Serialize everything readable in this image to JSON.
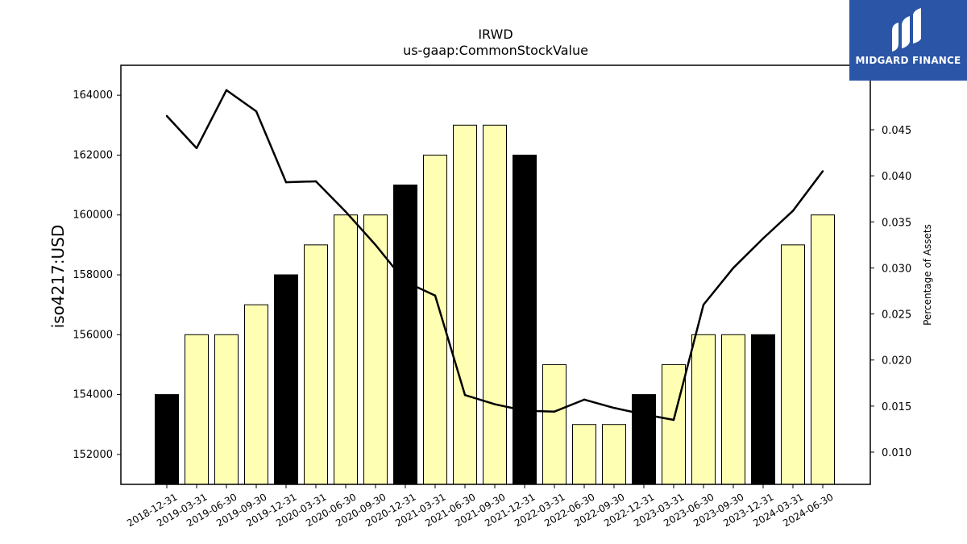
{
  "brand": {
    "name": "MIDGARD FINANCE",
    "color": "#2b55a6",
    "icon": "midgard-logo-icon"
  },
  "chart_data": {
    "type": "bar",
    "title": "IRWD",
    "subtitle": "us-gaap:CommonStockValue",
    "ylabel": "iso4217:USD",
    "y2label": "Percentage of Assets",
    "categories": [
      "2018-12-31",
      "2019-03-31",
      "2019-06-30",
      "2019-09-30",
      "2019-12-31",
      "2020-03-31",
      "2020-06-30",
      "2020-09-30",
      "2020-12-31",
      "2021-03-31",
      "2021-06-30",
      "2021-09-30",
      "2021-12-31",
      "2022-03-31",
      "2022-06-30",
      "2022-09-30",
      "2022-12-31",
      "2023-03-31",
      "2023-06-30",
      "2023-09-30",
      "2023-12-31",
      "2024-03-31",
      "2024-06-30"
    ],
    "series": [
      {
        "type": "bar",
        "values": [
          154000,
          156000,
          156000,
          157000,
          158000,
          159000,
          160000,
          160000,
          161000,
          162000,
          163000,
          163000,
          162000,
          155000,
          153000,
          153000,
          154000,
          155000,
          156000,
          156000,
          156000,
          159000,
          160000
        ]
      },
      {
        "type": "line",
        "axis": "right",
        "values": [
          0.0465,
          0.043,
          0.0493,
          0.047,
          0.0393,
          0.0394,
          0.0361,
          0.0325,
          0.0285,
          0.027,
          0.0162,
          0.0152,
          0.0145,
          0.0144,
          0.0157,
          0.0148,
          0.0141,
          0.0135,
          0.026,
          0.03,
          0.0332,
          0.0362,
          0.0405
        ]
      }
    ],
    "bar_highlight": [
      true,
      false,
      false,
      false,
      true,
      false,
      false,
      false,
      true,
      false,
      false,
      false,
      true,
      false,
      false,
      false,
      true,
      false,
      false,
      false,
      true,
      false,
      false
    ],
    "colors": {
      "bar_default": "#ffffb3",
      "bar_highlight": "#000000",
      "line": "#000000"
    },
    "ylim": [
      151000,
      165000
    ],
    "y2lim": [
      0.0065,
      0.052
    ],
    "yticks": [
      152000,
      154000,
      156000,
      158000,
      160000,
      162000,
      164000
    ],
    "y2ticks": [
      0.01,
      0.015,
      0.02,
      0.025,
      0.03,
      0.035,
      0.04,
      0.045
    ],
    "y2tick_labels": [
      "0.010",
      "0.015",
      "0.020",
      "0.025",
      "0.030",
      "0.035",
      "0.040",
      "0.045"
    ],
    "grid": false,
    "legend": "none"
  }
}
